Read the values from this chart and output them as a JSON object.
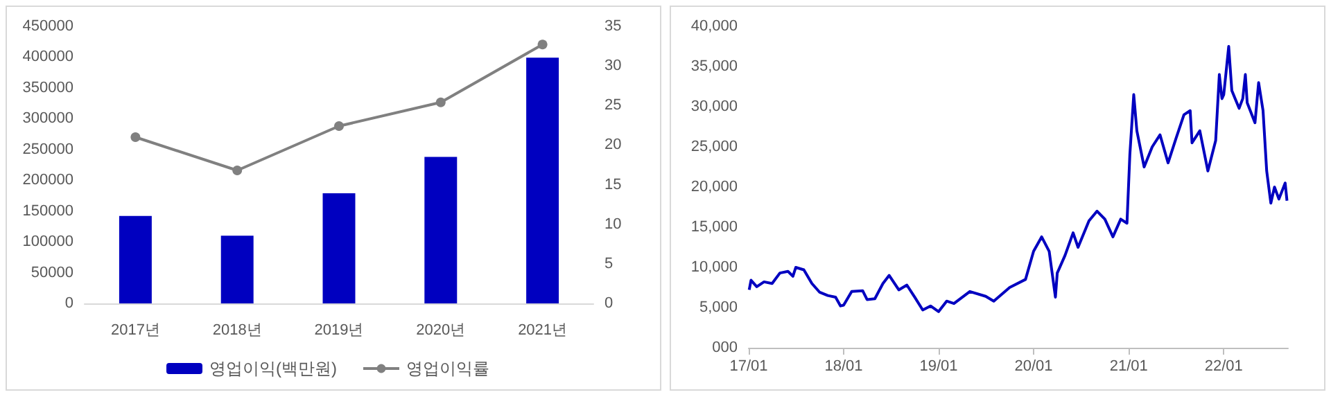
{
  "chart_data": [
    {
      "type": "bar",
      "categories": [
        "2017년",
        "2018년",
        "2019년",
        "2020년",
        "2021년"
      ],
      "series": [
        {
          "name": "영업이익(백만원)",
          "color": "#0000c0",
          "values": [
            142000,
            110000,
            179000,
            238000,
            399000
          ]
        },
        {
          "name": "영업이익률",
          "type": "line",
          "axis": "y2",
          "color": "#808080",
          "marker": "circle",
          "values": [
            21,
            16.8,
            22.4,
            25.4,
            32.7
          ]
        }
      ],
      "ylim": [
        0,
        450000
      ],
      "yticks": [
        0,
        50000,
        100000,
        150000,
        200000,
        250000,
        300000,
        350000,
        400000,
        450000
      ],
      "y2lim": [
        0,
        35
      ],
      "y2ticks": [
        0,
        5,
        10,
        15,
        20,
        25,
        30,
        35
      ],
      "legend": "bottom",
      "grid": false
    },
    {
      "type": "line",
      "color": "#0000c0",
      "marker": "none",
      "grid": false,
      "x": [
        "2017-01-03",
        "2017-01-10",
        "2017-02-01",
        "2017-03-01",
        "2017-04-01",
        "2017-05-01",
        "2017-06-01",
        "2017-06-20",
        "2017-07-01",
        "2017-08-01",
        "2017-09-01",
        "2017-10-01",
        "2017-11-01",
        "2017-12-01",
        "2017-12-20",
        "2018-01-01",
        "2018-02-01",
        "2018-03-15",
        "2018-04-01",
        "2018-05-01",
        "2018-06-01",
        "2018-06-25",
        "2018-08-01",
        "2018-09-01",
        "2018-10-01",
        "2018-11-01",
        "2018-12-01",
        "2019-01-01",
        "2019-02-01",
        "2019-03-01",
        "2019-05-01",
        "2019-07-01",
        "2019-08-01",
        "2019-10-01",
        "2019-12-01",
        "2020-01-01",
        "2020-02-01",
        "2020-03-01",
        "2020-03-25",
        "2020-04-01",
        "2020-05-01",
        "2020-06-01",
        "2020-06-20",
        "2020-08-01",
        "2020-09-01",
        "2020-10-01",
        "2020-11-01",
        "2020-12-01",
        "2020-12-25",
        "2021-01-05",
        "2021-01-20",
        "2021-02-01",
        "2021-03-01",
        "2021-04-01",
        "2021-05-01",
        "2021-06-01",
        "2021-07-01",
        "2021-08-01",
        "2021-08-25",
        "2021-09-01",
        "2021-10-01",
        "2021-11-01",
        "2021-12-01",
        "2021-12-15",
        "2021-12-25",
        "2022-01-01",
        "2022-01-20",
        "2022-02-01",
        "2022-03-01",
        "2022-03-15",
        "2022-03-25",
        "2022-04-01",
        "2022-05-01",
        "2022-05-15",
        "2022-06-01",
        "2022-06-15",
        "2022-07-01",
        "2022-07-15",
        "2022-08-01",
        "2022-08-25",
        "2022-09-01"
      ],
      "values": [
        7200,
        8400,
        7600,
        8200,
        8000,
        9300,
        9500,
        8900,
        10000,
        9700,
        8000,
        6900,
        6500,
        6300,
        5200,
        5300,
        7000,
        7100,
        6000,
        6100,
        8000,
        9000,
        7200,
        7800,
        6300,
        4700,
        5200,
        4500,
        5800,
        5500,
        7000,
        6400,
        5800,
        7500,
        8500,
        12000,
        13800,
        12000,
        6300,
        9300,
        11500,
        14300,
        12500,
        15800,
        17000,
        16000,
        13800,
        16000,
        15500,
        24000,
        31500,
        27000,
        22500,
        25000,
        26500,
        23000,
        26000,
        29000,
        29500,
        25500,
        27000,
        22000,
        25800,
        34000,
        31000,
        31500,
        37500,
        32000,
        29800,
        31000,
        34000,
        30500,
        28000,
        33000,
        29500,
        22000,
        18000,
        20000,
        18500,
        20500,
        18300
      ],
      "xlim": [
        "2017-01-01",
        "2022-09-05"
      ],
      "xticks": [
        {
          "value": "2017-01-01",
          "label": "17/01"
        },
        {
          "value": "2018-01-01",
          "label": "18/01"
        },
        {
          "value": "2019-01-01",
          "label": "19/01"
        },
        {
          "value": "2020-01-01",
          "label": "20/01"
        },
        {
          "value": "2021-01-01",
          "label": "21/01"
        },
        {
          "value": "2022-01-01",
          "label": "22/01"
        }
      ],
      "ylim": [
        0,
        40000
      ],
      "yticks": [
        {
          "value": 0,
          "label": "000"
        },
        {
          "value": 5000,
          "label": "5,000"
        },
        {
          "value": 10000,
          "label": "10,000"
        },
        {
          "value": 15000,
          "label": "15,000"
        },
        {
          "value": 20000,
          "label": "20,000"
        },
        {
          "value": 25000,
          "label": "25,000"
        },
        {
          "value": 30000,
          "label": "30,000"
        },
        {
          "value": 35000,
          "label": "35,000"
        },
        {
          "value": 40000,
          "label": "40,000"
        }
      ]
    }
  ]
}
